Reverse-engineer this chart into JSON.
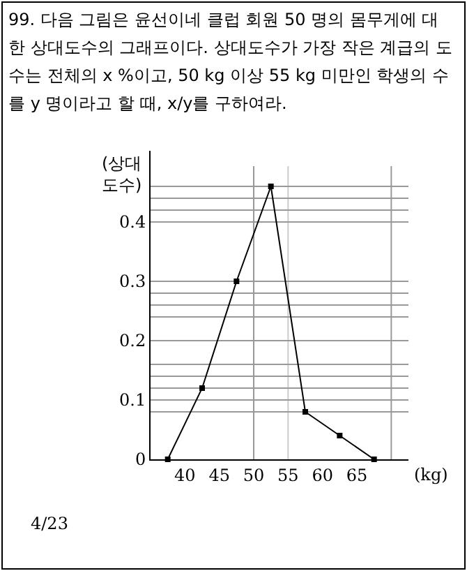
{
  "chart_data": {
    "type": "line",
    "title": "99. 다음 그림은 윤선이네 클럽 회원 50 명의 몸무게에 대한 상대도수의 그래프이다. 상대도수가 가장 작은 계급의 도수는 전체의 x %이고, 50 kg 이상 55 kg 미만인 학생의 수를 y 명이라고 할 때, x/y를 구하여라.",
    "xlabel": "(kg)",
    "ylabel": "(상대 도수)",
    "x": [
      37.5,
      42.5,
      47.5,
      52.5,
      57.5,
      62.5,
      67.5
    ],
    "series": [
      {
        "color": "#000000",
        "values": [
          0,
          0.12,
          0.3,
          0.46,
          0.08,
          0.04,
          0
        ]
      }
    ],
    "marker": "square",
    "line_style": "solid",
    "xlim": [
      35,
      72.5
    ],
    "ylim": [
      0,
      0.52
    ],
    "xticks": [
      40,
      45,
      50,
      55,
      60,
      65
    ],
    "yticks": [
      0,
      {
        "value": 0.08,
        "label": null
      },
      0.1,
      {
        "value": 0.12,
        "label": null
      },
      {
        "value": 0.14,
        "label": null
      },
      {
        "value": 0.16,
        "label": null
      },
      0.2,
      {
        "value": 0.24,
        "label": null
      },
      {
        "value": 0.26,
        "label": null
      },
      {
        "value": 0.28,
        "label": null
      },
      0.3,
      0.4,
      {
        "value": 0.42,
        "label": null
      },
      {
        "value": 0.44,
        "label": null
      },
      {
        "value": 0.46,
        "label": null
      }
    ],
    "grid": "y",
    "ref_lines": [
      {
        "axis": "x",
        "value": 50,
        "color": "#999999"
      },
      {
        "axis": "x",
        "value": 55,
        "color": "#cccccc"
      },
      {
        "axis": "x",
        "value": 70,
        "color": "#999999"
      }
    ],
    "annotations": [
      "4/23"
    ]
  }
}
